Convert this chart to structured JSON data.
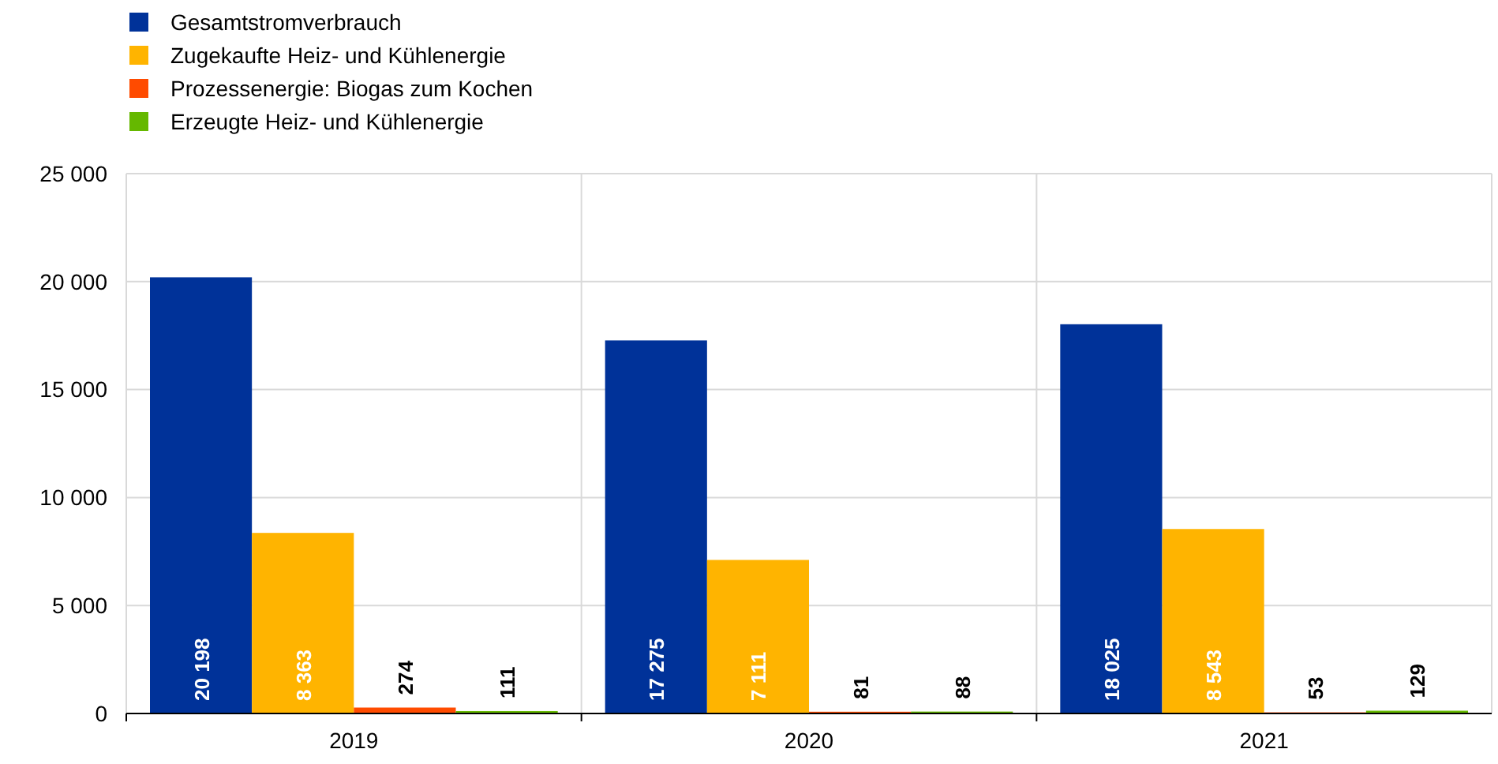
{
  "chart_data": {
    "type": "bar",
    "categories": [
      "2019",
      "2020",
      "2021"
    ],
    "series": [
      {
        "name": "Gesamtstromverbrauch",
        "color": "#003299",
        "values": [
          20198,
          17275,
          18025
        ],
        "value_labels": [
          "20 198",
          "17 275",
          "18 025"
        ]
      },
      {
        "name": "Zugekaufte Heiz- und Kühlenergie",
        "color": "#ffb400",
        "values": [
          8363,
          7111,
          8543
        ],
        "value_labels": [
          "8 363",
          "7 111",
          "8 543"
        ]
      },
      {
        "name": "Prozessenergie: Biogas zum Kochen",
        "color": "#ff4b00",
        "values": [
          274,
          81,
          53
        ],
        "value_labels": [
          "274",
          "81",
          "53"
        ]
      },
      {
        "name": "Erzeugte Heiz- und Kühlenergie",
        "color": "#65b800",
        "values": [
          111,
          88,
          129
        ],
        "value_labels": [
          "111",
          "88",
          "129"
        ]
      }
    ],
    "ylim": [
      0,
      25000
    ],
    "yticks": [
      0,
      {
        "value": 5000,
        "label": "5 000"
      },
      {
        "value": 10000,
        "label": "10 000"
      },
      {
        "value": 15000,
        "label": "15 000"
      },
      {
        "value": 20000,
        "label": "20 000"
      },
      {
        "value": 25000,
        "label": "25 000"
      }
    ],
    "grid": true,
    "legend": "top left"
  }
}
